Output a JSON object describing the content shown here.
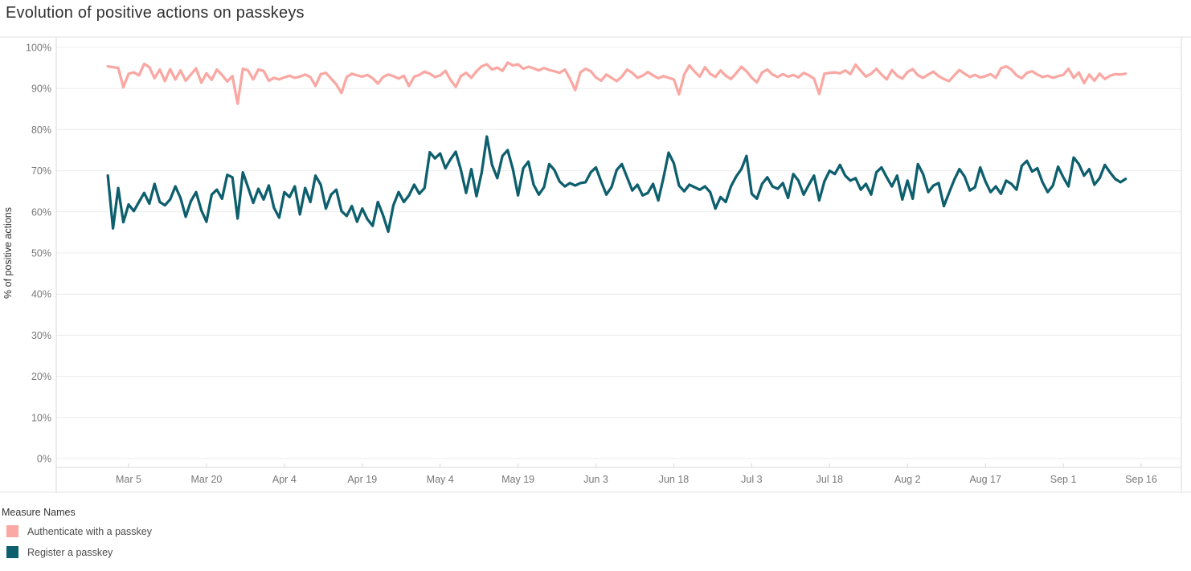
{
  "title": "Evolution of positive actions on passkeys",
  "legend": {
    "title": "Measure Names",
    "items": [
      {
        "label": "Authenticate with a passkey",
        "color": "#F9A8A3"
      },
      {
        "label": "Register a passkey",
        "color": "#0E5F6E"
      }
    ]
  },
  "chart_data": {
    "type": "line",
    "title": "Evolution of positive actions on passkeys",
    "xlabel": "",
    "ylabel": "% of positive actions",
    "ylim": [
      0,
      100
    ],
    "y_tick_step": 10,
    "y_tick_labels": [
      "0%",
      "10%",
      "20%",
      "30%",
      "40%",
      "50%",
      "60%",
      "70%",
      "80%",
      "90%",
      "100%"
    ],
    "grid": "horizontal",
    "legend_position": "bottom-left",
    "x_unit": "day index (daily points, index 0 = Mar 1)",
    "x_ticks": [
      {
        "label": "Mar 5",
        "day": 4
      },
      {
        "label": "Mar 20",
        "day": 19
      },
      {
        "label": "Apr 4",
        "day": 34
      },
      {
        "label": "Apr 19",
        "day": 49
      },
      {
        "label": "May 4",
        "day": 64
      },
      {
        "label": "May 19",
        "day": 79
      },
      {
        "label": "Jun 3",
        "day": 94
      },
      {
        "label": "Jun 18",
        "day": 109
      },
      {
        "label": "Jul 3",
        "day": 124
      },
      {
        "label": "Jul 18",
        "day": 139
      },
      {
        "label": "Aug 2",
        "day": 154
      },
      {
        "label": "Aug 17",
        "day": 169
      },
      {
        "label": "Sep 1",
        "day": 184
      },
      {
        "label": "Sep 16",
        "day": 199
      }
    ],
    "series": [
      {
        "name": "Authenticate with a passkey",
        "color": "#F9A8A3",
        "start_day": 0,
        "values": [
          95.4,
          95.2,
          95.0,
          90.3,
          93.6,
          93.9,
          93.2,
          96.0,
          95.2,
          92.5,
          94.6,
          91.8,
          94.7,
          92.2,
          94.4,
          91.9,
          93.4,
          94.9,
          91.4,
          93.7,
          92.1,
          94.6,
          93.3,
          91.7,
          93.0,
          86.3,
          94.8,
          94.4,
          92.2,
          94.6,
          94.3,
          91.9,
          92.6,
          92.2,
          92.7,
          93.1,
          92.6,
          92.9,
          93.4,
          92.8,
          90.6,
          93.5,
          93.8,
          92.4,
          91.0,
          88.9,
          92.8,
          93.6,
          93.2,
          92.9,
          93.3,
          92.5,
          91.2,
          92.8,
          93.4,
          93.0,
          92.4,
          93.1,
          90.6,
          92.9,
          93.3,
          94.1,
          93.6,
          92.8,
          93.2,
          94.3,
          92.1,
          90.4,
          93.0,
          93.8,
          92.6,
          94.2,
          95.4,
          95.9,
          94.6,
          95.1,
          94.3,
          96.3,
          95.6,
          95.9,
          94.8,
          95.3,
          94.9,
          94.4,
          95.0,
          94.5,
          94.2,
          93.8,
          94.6,
          92.4,
          89.6,
          93.9,
          94.8,
          94.2,
          92.7,
          91.9,
          93.4,
          92.6,
          91.8,
          92.9,
          94.6,
          93.8,
          92.6,
          93.1,
          94.0,
          93.2,
          92.5,
          93.0,
          92.6,
          92.2,
          88.6,
          93.4,
          95.6,
          94.1,
          92.9,
          95.2,
          93.6,
          92.8,
          94.4,
          93.1,
          92.3,
          93.7,
          95.3,
          94.2,
          92.6,
          91.5,
          93.9,
          94.6,
          93.4,
          92.8,
          93.5,
          92.9,
          93.3,
          92.7,
          93.8,
          93.2,
          92.4,
          88.7,
          93.6,
          93.8,
          93.9,
          93.7,
          94.4,
          93.5,
          95.8,
          94.3,
          92.9,
          93.6,
          94.8,
          93.4,
          92.2,
          94.5,
          93.1,
          92.4,
          94.0,
          94.7,
          93.2,
          92.6,
          93.4,
          94.1,
          93.0,
          92.3,
          91.8,
          93.2,
          94.5,
          93.6,
          92.8,
          93.3,
          92.7,
          93.0,
          93.5,
          92.6,
          94.9,
          95.4,
          94.6,
          93.2,
          92.5,
          93.8,
          94.2,
          93.4,
          92.8,
          93.1,
          92.6,
          93.0,
          93.3,
          94.8,
          92.6,
          93.9,
          91.3,
          93.4,
          91.9,
          93.6,
          92.3,
          93.1,
          93.5,
          93.4,
          93.6
        ]
      },
      {
        "name": "Register a passkey",
        "color": "#0E5F6E",
        "start_day": 0,
        "values": [
          68.8,
          56.0,
          65.8,
          57.5,
          61.8,
          60.2,
          62.4,
          64.6,
          62.0,
          66.8,
          62.4,
          61.6,
          63.0,
          66.2,
          63.4,
          58.8,
          62.6,
          64.8,
          60.4,
          57.6,
          64.2,
          65.4,
          63.2,
          69.0,
          68.4,
          58.4,
          69.6,
          66.0,
          62.2,
          65.6,
          63.0,
          66.4,
          61.0,
          58.6,
          64.8,
          63.6,
          66.2,
          59.4,
          65.8,
          62.4,
          68.8,
          66.6,
          60.8,
          64.2,
          65.4,
          60.2,
          59.0,
          61.4,
          57.6,
          60.8,
          58.2,
          56.6,
          62.4,
          59.2,
          55.2,
          61.6,
          64.8,
          62.4,
          64.0,
          66.6,
          64.4,
          65.8,
          74.5,
          73.0,
          74.2,
          70.6,
          72.8,
          74.6,
          70.2,
          64.6,
          70.4,
          63.8,
          69.6,
          78.3,
          71.4,
          68.2,
          73.6,
          75.0,
          70.4,
          64.0,
          70.6,
          72.2,
          66.6,
          64.2,
          66.0,
          71.6,
          70.2,
          67.4,
          66.2,
          67.0,
          66.4,
          67.0,
          67.2,
          69.6,
          70.8,
          67.4,
          64.2,
          66.0,
          70.2,
          71.6,
          68.4,
          65.2,
          66.6,
          64.0,
          64.6,
          66.8,
          62.8,
          68.2,
          74.4,
          71.8,
          66.4,
          65.0,
          66.6,
          66.0,
          65.4,
          66.2,
          64.8,
          60.8,
          63.6,
          62.4,
          66.2,
          68.6,
          70.4,
          73.6,
          64.4,
          63.2,
          66.8,
          68.4,
          66.2,
          65.6,
          67.0,
          63.4,
          69.2,
          67.6,
          64.2,
          66.6,
          68.8,
          62.8,
          67.4,
          70.0,
          69.2,
          71.4,
          68.8,
          67.6,
          68.2,
          65.4,
          66.8,
          64.2,
          69.6,
          70.8,
          68.4,
          66.2,
          68.8,
          63.0,
          67.6,
          63.2,
          71.6,
          69.2,
          64.8,
          66.4,
          67.0,
          61.4,
          64.6,
          67.8,
          70.4,
          68.6,
          65.2,
          66.0,
          70.8,
          67.4,
          64.8,
          66.2,
          64.4,
          67.6,
          66.8,
          65.4,
          71.2,
          72.4,
          69.8,
          70.6,
          67.2,
          64.8,
          66.4,
          71.0,
          68.4,
          66.2,
          73.2,
          71.6,
          68.8,
          70.4,
          66.6,
          68.2,
          71.4,
          69.6,
          68.0,
          67.2,
          68.0
        ]
      }
    ],
    "style": {
      "grid_color": "#ECECEC",
      "border_color": "#E1E1E1",
      "axis_line_color": "#D9D9D9",
      "tick_label_color": "#787878",
      "axis_title_color": "#333333",
      "line_width": 3.3
    }
  }
}
